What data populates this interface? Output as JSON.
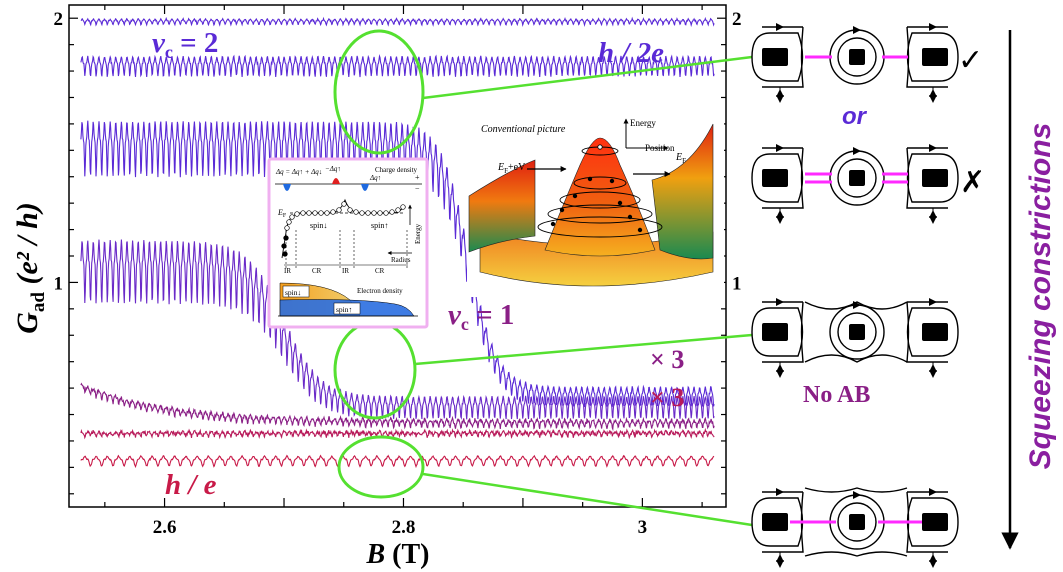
{
  "chart_data": {
    "type": "line",
    "xlabel": "B (T)",
    "xlabel_var": "B",
    "xlabel_unit": " (T)",
    "ylabel_var": "G",
    "ylabel_sub": "ad",
    "ylabel_rest": " (e² / h)",
    "xlim": [
      2.52,
      3.07
    ],
    "xticks": [
      {
        "v": 2.6,
        "label": "2.6"
      },
      {
        "v": 2.8,
        "label": "2.8"
      },
      {
        "v": 3.0,
        "label": "3"
      }
    ],
    "ylim": [
      0.15,
      2.05
    ],
    "yticks": [
      {
        "v": 2.0,
        "label": "2"
      },
      {
        "v": 1.0,
        "label": "1"
      }
    ],
    "grid": false,
    "series": [
      {
        "id": "t1",
        "color": "#5a2ad6",
        "mode": "flat",
        "base": 1.99,
        "amp": 0.014,
        "period": 0.0047,
        "noise": 0.004
      },
      {
        "id": "t2",
        "color": "#5a2ad6",
        "mode": "flat",
        "base": 1.83,
        "amp": 0.05,
        "period": 0.0047,
        "noise": 0.006
      },
      {
        "id": "t3",
        "color": "#5a2ad6",
        "mode": "drop",
        "hi": 1.54,
        "lo": 0.58,
        "center": 2.855,
        "width": 0.035,
        "amp": 0.14,
        "period": 0.0047,
        "noise": 0.006
      },
      {
        "id": "t4",
        "color": "#6a2ac8",
        "mode": "drop",
        "hi": 1.08,
        "lo": 0.54,
        "center": 2.7,
        "width": 0.045,
        "amp": 0.16,
        "period": 0.0047,
        "noise": 0.006
      },
      {
        "id": "t5",
        "color": "#8a1f86",
        "mode": "decay",
        "hi": 0.63,
        "lo": 0.47,
        "tau": 0.07,
        "amp": 0.02,
        "period": 0.0047,
        "noise": 0.012
      },
      {
        "id": "t6",
        "color": "#b81a5a",
        "mode": "flat",
        "base": 0.43,
        "amp": 0.012,
        "period": 0.0047,
        "noise": 0.013
      },
      {
        "id": "t7",
        "color": "#c81a48",
        "mode": "flat",
        "base": 0.33,
        "amp": 0.025,
        "period": 0.0094,
        "noise": 0.004
      }
    ],
    "annotations": {
      "nu2": {
        "var": "ν",
        "sub": "c",
        "rest": " = 2"
      },
      "nu1": {
        "var": "ν",
        "sub": "c",
        "rest": " = 1"
      },
      "h2e": "h / 2e",
      "he": "h / e",
      "x3a": "× 3",
      "x3b": "× 3"
    }
  },
  "inset_potential": {
    "title": "Conventional picture",
    "energy": "Energy",
    "position": "Position",
    "ef_ev": "E",
    "ef_ev_sub": "F",
    "ef_ev_rest": "+eV",
    "ef": "E",
    "ef_sub": "F"
  },
  "inset_density": {
    "dq_formula": "Δq = Δq↑ + Δq↓",
    "minus_dq": "−Δq↑",
    "dq_up": "Δq↑",
    "charge_density": "Charge density",
    "plus": "+",
    "minus": "−",
    "ef": "E",
    "ef_sub": "F",
    "spin_down": "spin↓",
    "spin_up": "spin↑",
    "energy": "Energy",
    "radius": "Radius",
    "ir1": "IR",
    "cr1": "CR",
    "ir2": "IR",
    "cr2": "CR",
    "electron_density": "Electron density",
    "spin_down_box": "spin↓",
    "spin_up_box": "spin↑"
  },
  "side_panel": {
    "or": "or",
    "check": "✓",
    "cross": "✗",
    "no_ab": "No AB",
    "squeezing": "Squeezing constrictions"
  }
}
